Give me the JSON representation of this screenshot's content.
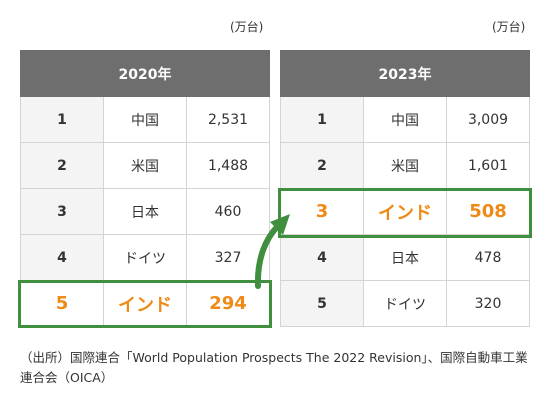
{
  "unit_label": "(万台)",
  "chart_data": [
    {
      "type": "table",
      "title": "2020年",
      "rows": [
        {
          "rank": "1",
          "country": "中国",
          "value": "2,531"
        },
        {
          "rank": "2",
          "country": "米国",
          "value": "1,488"
        },
        {
          "rank": "3",
          "country": "日本",
          "value": "460"
        },
        {
          "rank": "4",
          "country": "ドイツ",
          "value": "327"
        },
        {
          "rank": "5",
          "country": "インド",
          "value": "294",
          "highlight": true
        }
      ]
    },
    {
      "type": "table",
      "title": "2023年",
      "rows": [
        {
          "rank": "1",
          "country": "中国",
          "value": "3,009"
        },
        {
          "rank": "2",
          "country": "米国",
          "value": "1,601"
        },
        {
          "rank": "3",
          "country": "インド",
          "value": "508",
          "highlight": true
        },
        {
          "rank": "4",
          "country": "日本",
          "value": "478"
        },
        {
          "rank": "5",
          "country": "ドイツ",
          "value": "320"
        }
      ]
    }
  ],
  "colors": {
    "header_bg": "#6e6e6e",
    "highlight_text": "#ee8a15",
    "highlight_border": "#3f8f3f",
    "rank_bg": "#f4f4f4"
  },
  "source": "（出所）国際連合「World Population Prospects The 2022 Revision」、国際自動車工業連合会（OICA）"
}
